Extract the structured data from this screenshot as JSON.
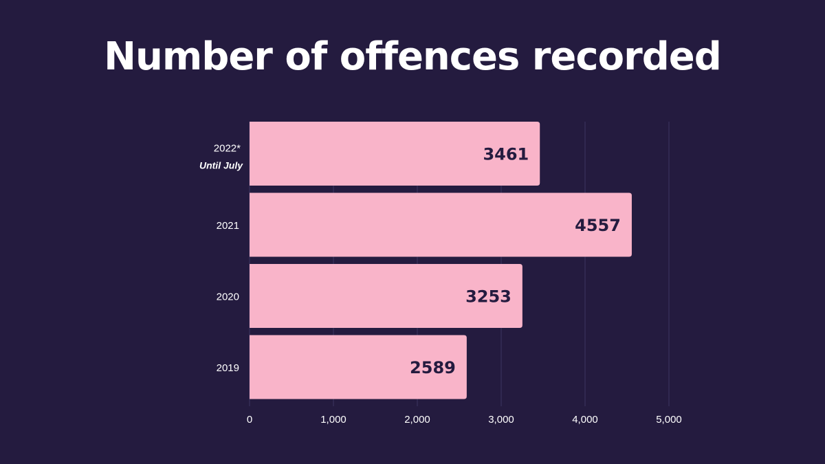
{
  "chart_data": {
    "type": "bar",
    "orientation": "horizontal",
    "title": "Number of offences recorded",
    "categories": [
      "2022*",
      "2021",
      "2020",
      "2019"
    ],
    "category_notes": [
      "Until July",
      "",
      "",
      ""
    ],
    "values": [
      3461,
      4557,
      3253,
      2589
    ],
    "xlim": [
      0,
      5000
    ],
    "xticks": [
      0,
      1000,
      2000,
      3000,
      4000,
      5000
    ],
    "xtick_labels": [
      "0",
      "1,000",
      "2,000",
      "3,000",
      "4,000",
      "5,000"
    ],
    "grid": "vertical",
    "data_labels": true,
    "xlabel": "",
    "ylabel": ""
  },
  "colors": {
    "background": "#241b3f",
    "bar": "#f9b4c9",
    "label_text": "#241b3f",
    "grid": "#3d3560"
  }
}
